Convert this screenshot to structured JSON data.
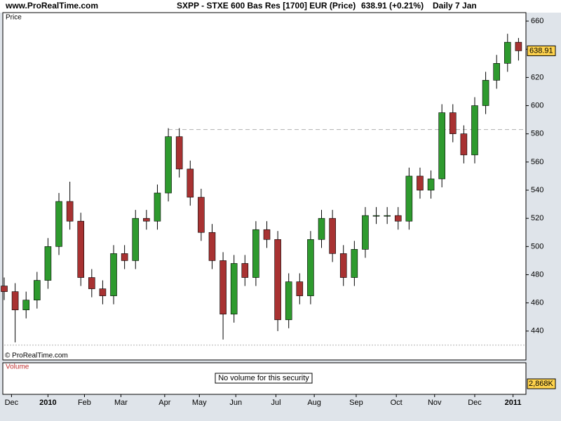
{
  "header": {
    "site": "www.ProRealTime.com",
    "title": "SXPP - STXE 600 Bas Res [1700] EUR (Price)",
    "change": "638.91 (+0.21%)",
    "period": "Daily  7 Jan"
  },
  "chart_data": {
    "type": "candlestick",
    "panel_label": "Price",
    "copyright": "© ProRealTime.com",
    "x": [
      0,
      6,
      12,
      18,
      24,
      30,
      36,
      42,
      48,
      54,
      60,
      66,
      72,
      78,
      84,
      90,
      96,
      102,
      108,
      114,
      120,
      126,
      132,
      138,
      144,
      150,
      156,
      162,
      168,
      174,
      180,
      186,
      192,
      198,
      204,
      210,
      216,
      222,
      228,
      234,
      240,
      246,
      252,
      258,
      264,
      270,
      276,
      282
    ],
    "open": [
      472,
      468,
      455,
      462,
      476,
      500,
      532,
      518,
      478,
      470,
      465,
      495,
      490,
      520,
      518,
      538,
      578,
      555,
      535,
      510,
      490,
      452,
      488,
      478,
      512,
      505,
      448,
      475,
      465,
      505,
      520,
      495,
      478,
      498,
      522,
      522,
      522,
      518,
      550,
      540,
      548,
      595,
      580,
      565,
      600,
      618,
      630,
      645
    ],
    "high": [
      478,
      474,
      468,
      482,
      506,
      538,
      546,
      524,
      484,
      476,
      501,
      501,
      526,
      526,
      544,
      584,
      584,
      561,
      541,
      516,
      496,
      494,
      494,
      518,
      518,
      511,
      481,
      481,
      511,
      526,
      526,
      501,
      504,
      528,
      528,
      528,
      528,
      556,
      556,
      554,
      601,
      601,
      586,
      606,
      624,
      636,
      651,
      648
    ],
    "low": [
      462,
      432,
      449,
      456,
      470,
      494,
      512,
      472,
      464,
      459,
      459,
      484,
      484,
      512,
      512,
      532,
      549,
      529,
      504,
      484,
      434,
      446,
      472,
      472,
      499,
      440,
      442,
      459,
      459,
      499,
      489,
      472,
      472,
      492,
      516,
      516,
      512,
      512,
      534,
      534,
      542,
      574,
      559,
      559,
      594,
      612,
      624,
      632
    ],
    "close": [
      468,
      455,
      462,
      476,
      500,
      532,
      518,
      478,
      470,
      465,
      495,
      490,
      520,
      518,
      538,
      578,
      555,
      535,
      510,
      490,
      452,
      488,
      478,
      512,
      505,
      448,
      475,
      465,
      505,
      520,
      495,
      478,
      498,
      522,
      522,
      522,
      518,
      550,
      540,
      548,
      595,
      580,
      565,
      600,
      618,
      630,
      645,
      638.91
    ],
    "up_color": "#2e9a2e",
    "down_color": "#a83232",
    "last_price": 638.91,
    "reference_lines": [
      583,
      430
    ],
    "xlim": [
      0,
      283
    ],
    "xticks": [
      {
        "value": 4,
        "label": "Dec"
      },
      {
        "value": 24,
        "label": "2010"
      },
      {
        "value": 44,
        "label": "Feb"
      },
      {
        "value": 64,
        "label": "Mar"
      },
      {
        "value": 88,
        "label": "Apr"
      },
      {
        "value": 107,
        "label": "May"
      },
      {
        "value": 127,
        "label": "Jun"
      },
      {
        "value": 149,
        "label": "Jul"
      },
      {
        "value": 170,
        "label": "Aug"
      },
      {
        "value": 193,
        "label": "Sep"
      },
      {
        "value": 215,
        "label": "Oct"
      },
      {
        "value": 236,
        "label": "Nov"
      },
      {
        "value": 258,
        "label": "Dec"
      },
      {
        "value": 279,
        "label": "2011"
      }
    ],
    "ylim": [
      420,
      666
    ],
    "yticks": [
      440,
      460,
      480,
      500,
      520,
      540,
      560,
      580,
      600,
      620,
      640,
      660
    ]
  },
  "volume_panel": {
    "label": "Volume",
    "message": "No volume for this security",
    "level": "2,868K"
  }
}
